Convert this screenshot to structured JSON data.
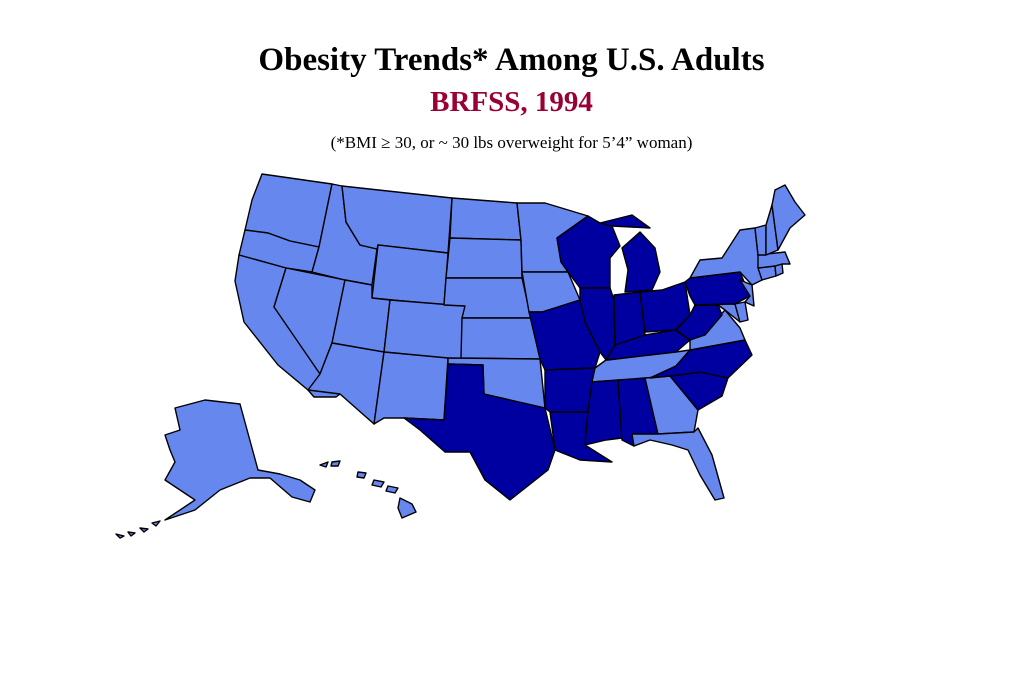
{
  "title": "Obesity Trends* Among U.S. Adults",
  "subtitle": "BRFSS, 1994",
  "footnote": "(*BMI ≥ 30, or ~ 30 lbs overweight for 5’4” woman)",
  "colors": {
    "category_light": "#6688ee",
    "category_dark": "#0000a0",
    "subtitle_color": "#990033"
  },
  "states": {
    "WA": "light",
    "OR": "light",
    "CA": "light",
    "ID": "light",
    "NV": "light",
    "MT": "light",
    "WY": "light",
    "UT": "light",
    "AZ": "light",
    "CO": "light",
    "NM": "light",
    "ND": "light",
    "SD": "light",
    "NE": "light",
    "KS": "light",
    "OK": "light",
    "TX": "dark",
    "MN": "light",
    "IA": "light",
    "MO": "dark",
    "AR": "dark",
    "LA": "dark",
    "WI": "dark",
    "IL": "dark",
    "MI": "dark",
    "IN": "dark",
    "OH": "dark",
    "KY": "dark",
    "TN": "light",
    "MS": "dark",
    "AL": "dark",
    "GA": "light",
    "FL": "light",
    "SC": "dark",
    "NC": "dark",
    "VA": "light",
    "WV": "dark",
    "PA": "dark",
    "NY": "light",
    "NJ": "light",
    "DE": "light",
    "MD": "light",
    "CT": "light",
    "RI": "light",
    "MA": "light",
    "VT": "light",
    "NH": "light",
    "ME": "light",
    "AK": "light",
    "HI": "light"
  }
}
